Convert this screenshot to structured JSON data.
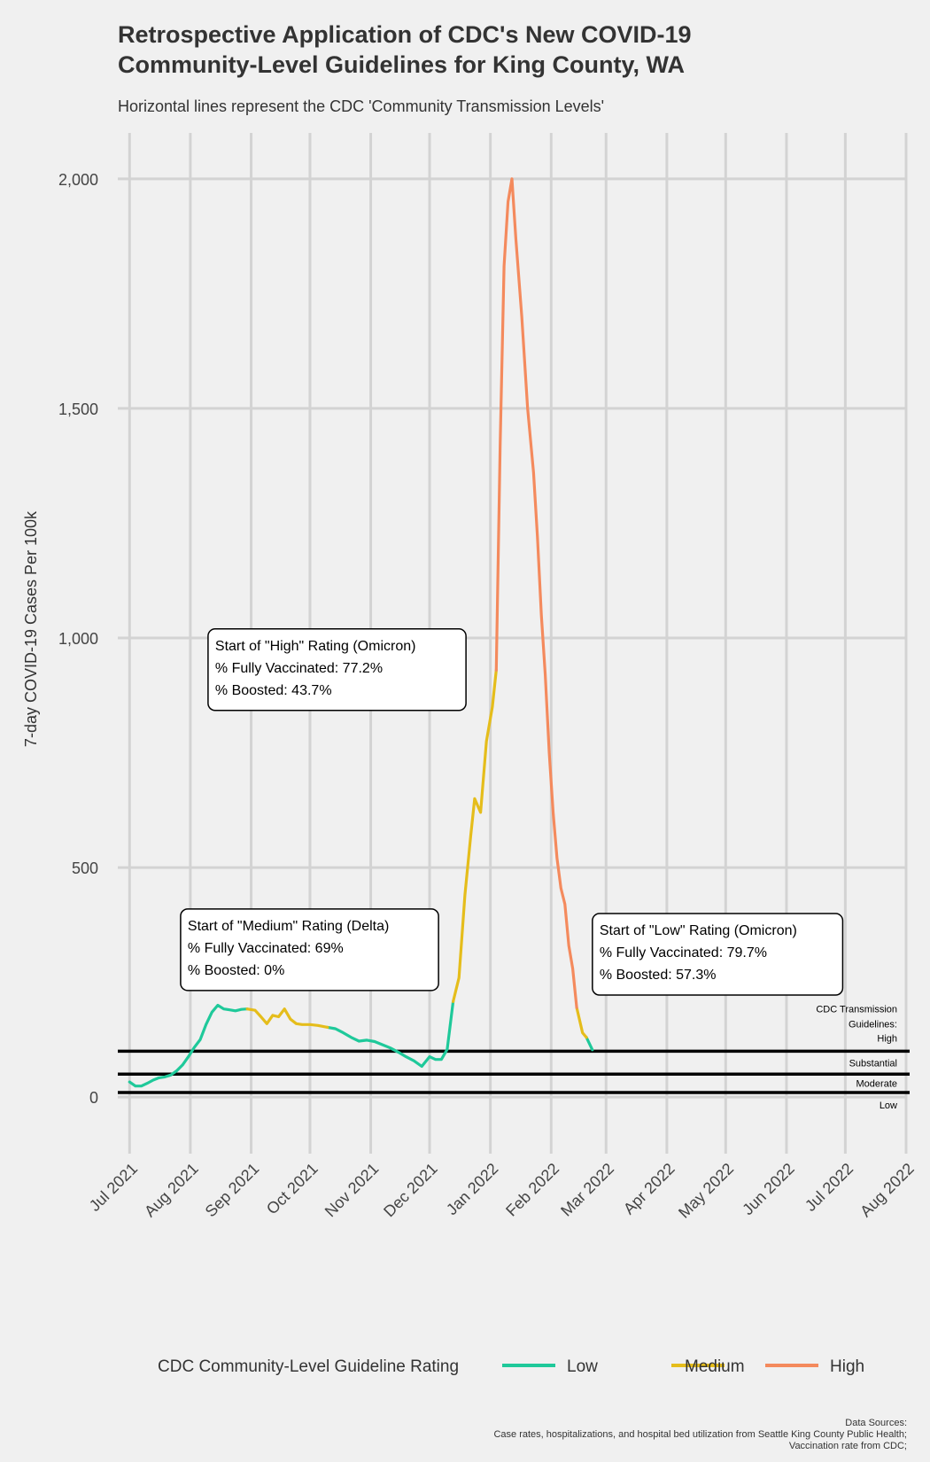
{
  "title_line1": "Retrospective Application of CDC's New COVID-19",
  "title_line2": "Community-Level Guidelines for King County, WA",
  "subtitle": "Horizontal lines represent the CDC 'Community Transmission Levels'",
  "caption": [
    "Data Sources:",
    "Case rates, hospitalizations, and hospital bed utilization from Seattle King County Public Health;",
    "Vaccination rate from CDC;"
  ],
  "colors": {
    "Low": "#1fc99a",
    "Medium": "#e5bd1b",
    "High": "#f48a5d"
  },
  "chart_data": {
    "type": "line",
    "title": "Retrospective Application of CDC's New COVID-19 Community-Level Guidelines for King County, WA",
    "subtitle": "Horizontal lines represent the CDC 'Community Transmission Levels'",
    "xlabel": "",
    "ylabel": "7-day COVID-19 Cases Per 100k",
    "xlim": [
      "2021-06-25",
      "2022-08-01"
    ],
    "ylim": [
      -100,
      2100
    ],
    "y_ticks": [
      0,
      500,
      1000,
      1500,
      2000
    ],
    "y_tick_labels": [
      "0",
      "500",
      "1,000",
      "1,500",
      "2,000"
    ],
    "x_ticks": [
      "2021-07-01",
      "2021-08-01",
      "2021-09-01",
      "2021-10-01",
      "2021-11-01",
      "2021-12-01",
      "2022-01-01",
      "2022-02-01",
      "2022-03-01",
      "2022-04-01",
      "2022-05-01",
      "2022-06-01",
      "2022-07-01",
      "2022-08-01"
    ],
    "x_tick_labels": [
      "Jul 2021",
      "Aug 2021",
      "Sep 2021",
      "Oct 2021",
      "Nov 2021",
      "Dec 2021",
      "Jan 2022",
      "Feb 2022",
      "Mar 2022",
      "Apr 2022",
      "May 2022",
      "Jun 2022",
      "Jul 2022",
      "Aug 2022"
    ],
    "grid": true,
    "legend": {
      "title": "CDC Community-Level Guideline Rating",
      "position": "bottom",
      "entries": [
        "Low",
        "Medium",
        "High"
      ]
    },
    "series": [
      {
        "name": "Low",
        "segments": [
          [
            [
              "2021-07-01",
              33
            ],
            [
              "2021-07-04",
              24
            ],
            [
              "2021-07-07",
              24
            ],
            [
              "2021-07-10",
              30
            ],
            [
              "2021-07-13",
              37
            ],
            [
              "2021-07-16",
              42
            ],
            [
              "2021-07-19",
              44
            ],
            [
              "2021-07-22",
              48
            ],
            [
              "2021-07-25",
              57
            ],
            [
              "2021-07-28",
              70
            ],
            [
              "2021-07-31",
              88
            ],
            [
              "2021-08-03",
              108
            ],
            [
              "2021-08-06",
              125
            ],
            [
              "2021-08-09",
              158
            ],
            [
              "2021-08-12",
              185
            ],
            [
              "2021-08-15",
              200
            ],
            [
              "2021-08-18",
              192
            ],
            [
              "2021-08-21",
              190
            ],
            [
              "2021-08-24",
              188
            ],
            [
              "2021-08-27",
              191
            ],
            [
              "2021-08-30",
              192
            ]
          ],
          [
            [
              "2021-10-10",
              152
            ],
            [
              "2021-10-14",
              149
            ],
            [
              "2021-10-18",
              140
            ],
            [
              "2021-10-22",
              130
            ],
            [
              "2021-10-26",
              122
            ],
            [
              "2021-10-30",
              124
            ],
            [
              "2021-11-03",
              121
            ],
            [
              "2021-11-07",
              114
            ],
            [
              "2021-11-11",
              107
            ],
            [
              "2021-11-15",
              98
            ],
            [
              "2021-11-19",
              88
            ],
            [
              "2021-11-23",
              79
            ],
            [
              "2021-11-27",
              67
            ],
            [
              "2021-12-01",
              88
            ],
            [
              "2021-12-04",
              82
            ],
            [
              "2021-12-07",
              82
            ],
            [
              "2021-12-10",
              104
            ],
            [
              "2021-12-13",
              208
            ]
          ],
          [
            [
              "2022-02-19",
              130
            ],
            [
              "2022-02-22",
              103
            ]
          ]
        ]
      },
      {
        "name": "Medium",
        "segments": [
          [
            [
              "2021-08-30",
              192
            ],
            [
              "2021-09-03",
              189
            ],
            [
              "2021-09-06",
              175
            ],
            [
              "2021-09-09",
              160
            ],
            [
              "2021-09-12",
              178
            ],
            [
              "2021-09-15",
              175
            ],
            [
              "2021-09-18",
              192
            ],
            [
              "2021-09-21",
              170
            ],
            [
              "2021-09-24",
              160
            ],
            [
              "2021-09-27",
              158
            ],
            [
              "2021-10-01",
              158
            ],
            [
              "2021-10-05",
              156
            ],
            [
              "2021-10-10",
              152
            ]
          ],
          [
            [
              "2021-12-13",
              208
            ],
            [
              "2021-12-16",
              260
            ],
            [
              "2021-12-19",
              440
            ],
            [
              "2021-12-22",
              570
            ],
            [
              "2021-12-24",
              650
            ],
            [
              "2021-12-27",
              620
            ],
            [
              "2021-12-30",
              775
            ],
            [
              "2022-01-02",
              850
            ],
            [
              "2022-01-04",
              930
            ]
          ],
          [
            [
              "2022-02-14",
              195
            ],
            [
              "2022-02-17",
              140
            ],
            [
              "2022-02-19",
              130
            ]
          ]
        ]
      },
      {
        "name": "High",
        "segments": [
          [
            [
              "2022-01-04",
              930
            ],
            [
              "2022-01-06",
              1420
            ],
            [
              "2022-01-08",
              1810
            ],
            [
              "2022-01-10",
              1950
            ],
            [
              "2022-01-12",
              2000
            ],
            [
              "2022-01-14",
              1870
            ],
            [
              "2022-01-17",
              1700
            ],
            [
              "2022-01-20",
              1500
            ],
            [
              "2022-01-23",
              1360
            ],
            [
              "2022-01-25",
              1220
            ],
            [
              "2022-01-27",
              1050
            ],
            [
              "2022-01-29",
              920
            ],
            [
              "2022-01-31",
              750
            ],
            [
              "2022-02-02",
              620
            ],
            [
              "2022-02-04",
              520
            ],
            [
              "2022-02-06",
              455
            ],
            [
              "2022-02-08",
              420
            ],
            [
              "2022-02-10",
              330
            ],
            [
              "2022-02-12",
              280
            ],
            [
              "2022-02-14",
              195
            ]
          ]
        ]
      }
    ],
    "reference_lines": [
      {
        "y": 100,
        "label": "High"
      },
      {
        "y": 50,
        "label": "Substantial"
      },
      {
        "y": 10,
        "label": "Moderate"
      }
    ],
    "reference_labels": {
      "header": [
        "CDC Transmission",
        "Guidelines:",
        "High"
      ],
      "substantial": "Substantial",
      "moderate": "Moderate",
      "low": "Low"
    },
    "annotations": [
      {
        "anchor_x": "2021-08-01",
        "anchor_y": 375,
        "lines": [
          "Start of \"Medium\" Rating (Delta)",
          "% Fully Vaccinated: 69%",
          "% Boosted: 0%"
        ]
      },
      {
        "anchor_x": "2021-08-15",
        "anchor_y": 985,
        "lines": [
          "Start of \"High\" Rating (Omicron)",
          "% Fully Vaccinated: 77.2%",
          "% Boosted: 43.7%"
        ]
      },
      {
        "anchor_x": "2022-02-27",
        "anchor_y": 365,
        "lines": [
          "Start of \"Low\" Rating (Omicron)",
          "% Fully Vaccinated: 79.7%",
          "% Boosted: 57.3%"
        ]
      }
    ]
  }
}
